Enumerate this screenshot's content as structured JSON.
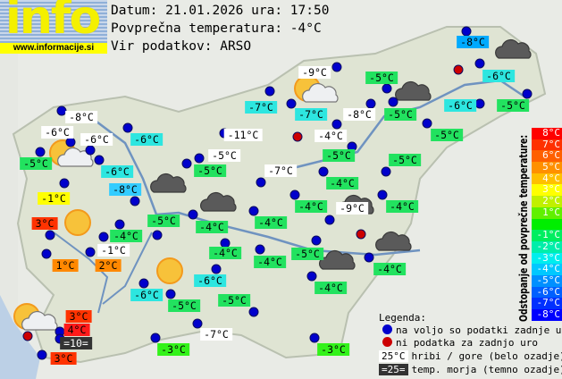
{
  "logo": {
    "word": "info",
    "url": "www.informacije.si"
  },
  "header": {
    "date_line": "Datum: 21.01.2026 ura: 17:50",
    "avg_line": "Povprečna temperatura: -4°C",
    "source_line": "Vir podatkov: ARSO"
  },
  "colors": {
    "white": "#ffffff",
    "green": "#22e25f",
    "lime": "#33f21a",
    "cyan": "#2de6e0",
    "sky": "#33ccff",
    "blue": "#00aaff",
    "yellow": "#ffff00",
    "orange": "#ff8800",
    "red": "#ff3300",
    "brightred": "#ff1a1a",
    "dark": "#333333",
    "dot_ok": "#0000cc",
    "dot_missing": "#cc0000"
  },
  "map_labels": [
    "-8°C",
    "-6°C",
    "-6°C",
    "-5°C",
    "-6°C",
    "-6°C",
    "-8°C",
    "-1°C",
    "3°C",
    "-11°C",
    "-7°C",
    "-5°C",
    "-5°C",
    "-7°C",
    "-9°C",
    "-7°C",
    "-8°C",
    "-4°C",
    "-5°C",
    "-5°C",
    "-5°C",
    "-5°C",
    "-5°C",
    "-8°C",
    "-6°C",
    "-6°C",
    "-5°C",
    "-4°C",
    "-4°C",
    "-9°C",
    "-4°C",
    "-5°C",
    "-4°C",
    "-1°C",
    "1°C",
    "2°C",
    "-4°C",
    "-4°C",
    "-4°C",
    "-4°C",
    "-5°C",
    "-4°C",
    "-6°C",
    "-6°C",
    "-5°C",
    "-5°C",
    "-4°C",
    "3°C",
    "4°C",
    "=10=",
    "3°C",
    "-7°C",
    "-3°C",
    "-3°C"
  ],
  "map_label_styles": [
    "white",
    "white",
    "white",
    "green",
    "cyan",
    "cyan",
    "sky",
    "yellow",
    "red",
    "white",
    "cyan",
    "white",
    "green",
    "white",
    "white",
    "cyan",
    "white",
    "white",
    "green",
    "green",
    "green",
    "green",
    "green",
    "blue",
    "cyan",
    "cyan",
    "green",
    "green",
    "green",
    "white",
    "green",
    "green",
    "green",
    "white",
    "orange",
    "orange",
    "green",
    "green",
    "green",
    "green",
    "green",
    "green",
    "cyan",
    "cyan",
    "green",
    "green",
    "green",
    "red",
    "brightred",
    "dark",
    "red",
    "white",
    "lime",
    "lime"
  ],
  "weather_icons": [
    "sun-cloud",
    "sun-cloud",
    "sun-cloud",
    "sun",
    "sun",
    "cloud",
    "cloud",
    "cloud",
    "cloud",
    "cloud",
    "cloud",
    "cloud"
  ],
  "scale": {
    "title": "Odstopanje od povprečne temperature:",
    "rows": [
      {
        "label": "8°C",
        "color": "#ff0000"
      },
      {
        "label": "7°C",
        "color": "#ff3000"
      },
      {
        "label": "6°C",
        "color": "#ff6000"
      },
      {
        "label": "5°C",
        "color": "#ff9000"
      },
      {
        "label": "4°C",
        "color": "#ffc000"
      },
      {
        "label": "3°C",
        "color": "#ffff00"
      },
      {
        "label": "2°C",
        "color": "#c0f000"
      },
      {
        "label": "1°C",
        "color": "#60f000"
      },
      {
        "label": "",
        "color": "#00ee00"
      },
      {
        "label": "-1°C",
        "color": "#00ee60"
      },
      {
        "label": "-2°C",
        "color": "#00eeaa"
      },
      {
        "label": "-3°C",
        "color": "#00eeee"
      },
      {
        "label": "-4°C",
        "color": "#00c8ff"
      },
      {
        "label": "-5°C",
        "color": "#0090ff"
      },
      {
        "label": "-6°C",
        "color": "#0060ff"
      },
      {
        "label": "-7°C",
        "color": "#0030ff"
      },
      {
        "label": "-8°C",
        "color": "#0000ff"
      }
    ]
  },
  "legend": {
    "title": "Legenda:",
    "ok": "na voljo so podatki zadnje ure",
    "missing": "ni podatka za zadnjo uro",
    "mountain_sample": "25°C",
    "mountain": "hribi / gore (belo ozadje)",
    "sea_sample": "=25=",
    "sea": "temp. morja (temno ozadje)"
  }
}
